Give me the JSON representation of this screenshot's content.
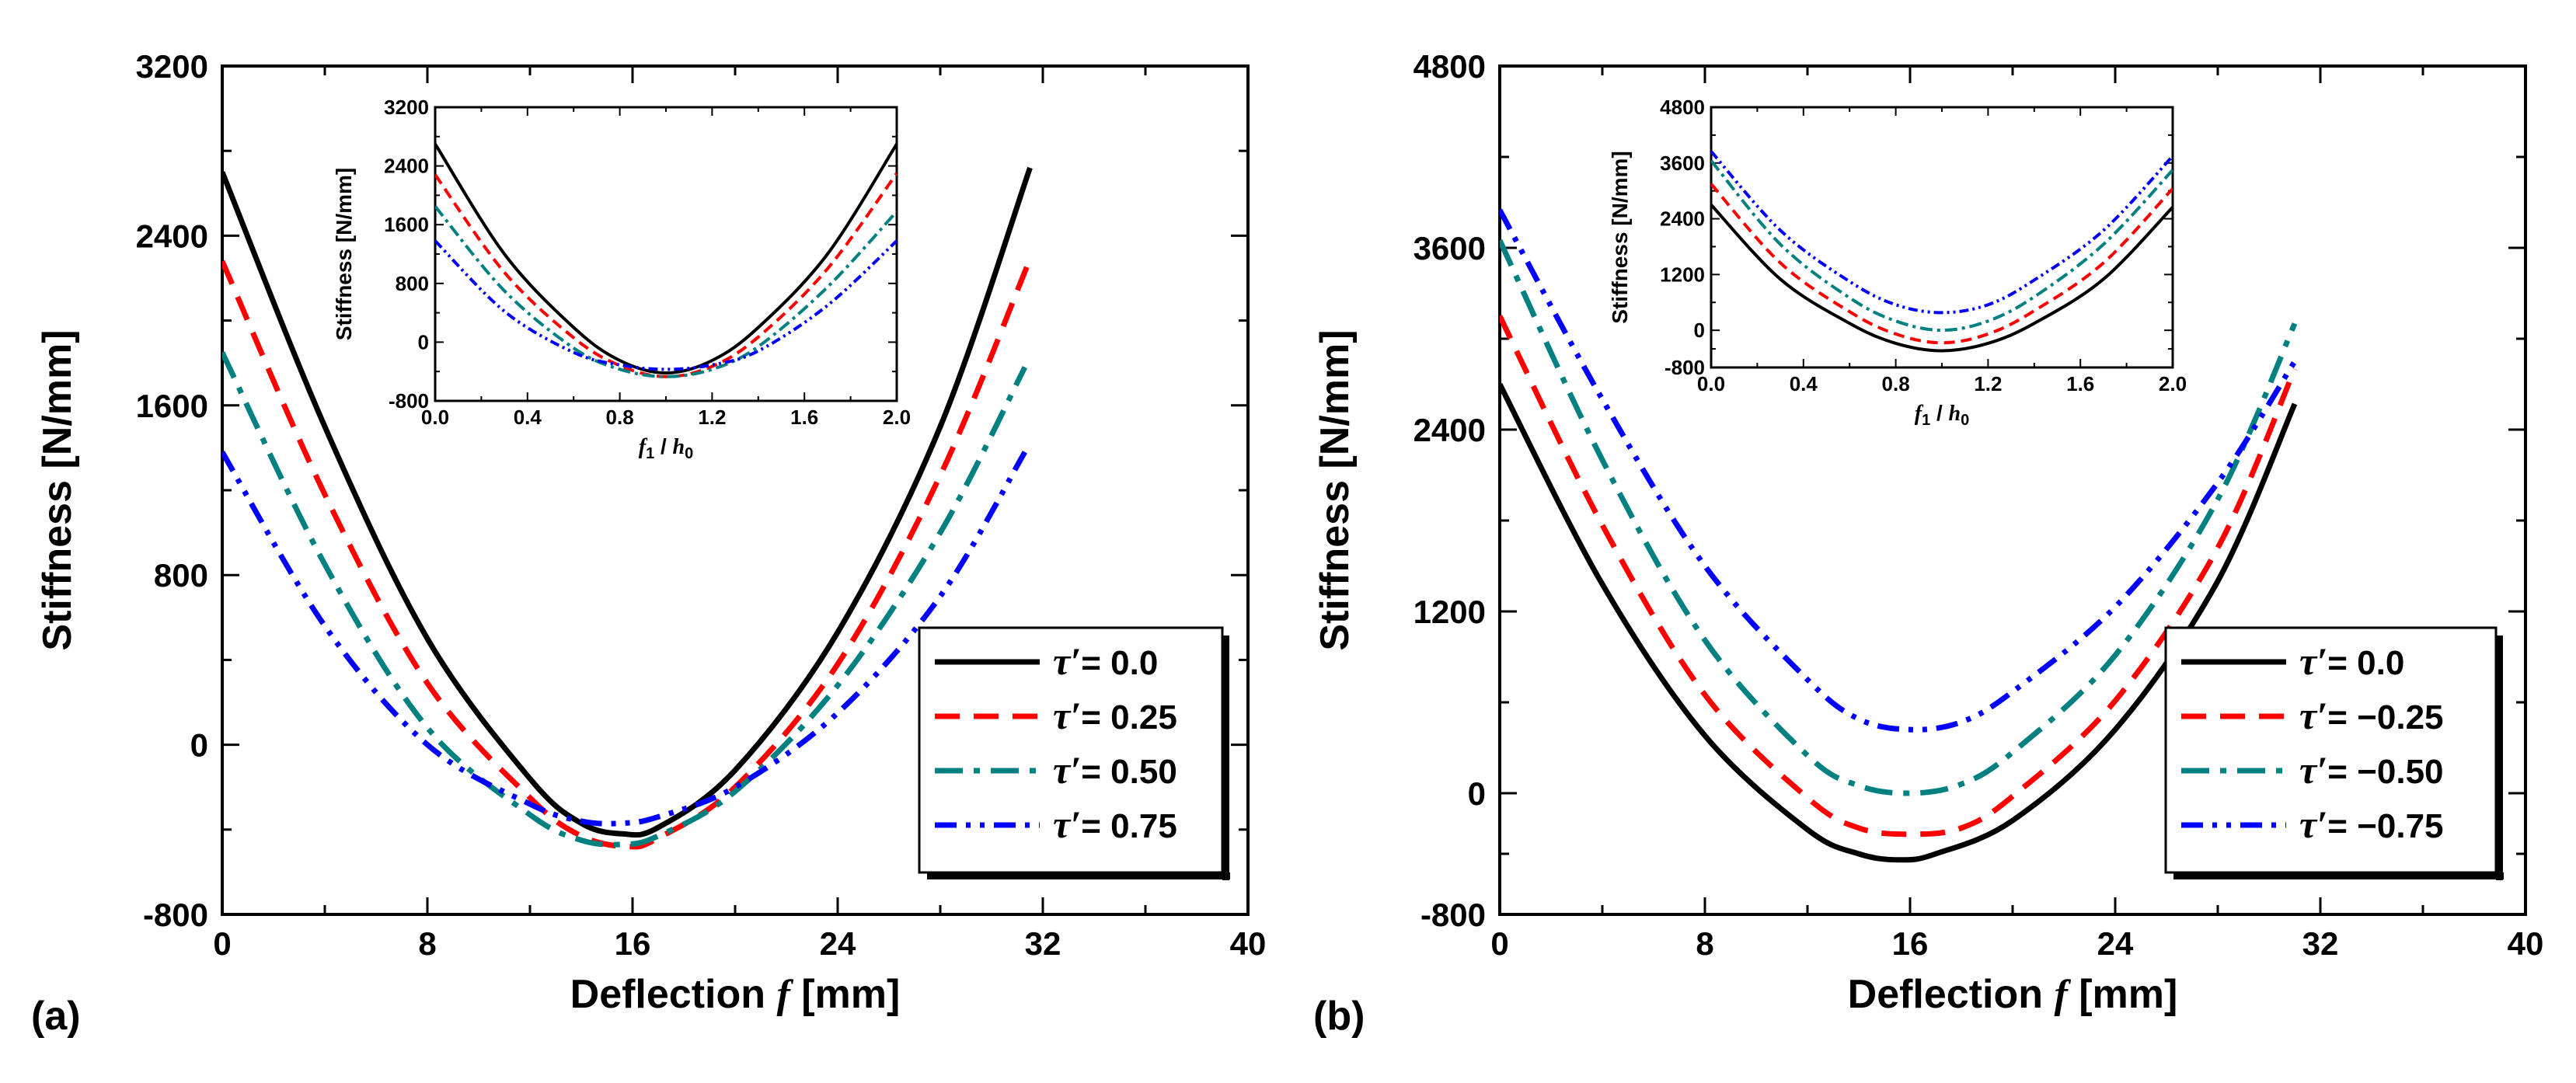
{
  "chart_data": [
    {
      "type": "line",
      "panel": "(a)",
      "xlabel_prefix": "Deflection ",
      "xlabel_var": "f",
      "xlabel_unit": " [mm]",
      "ylabel": "Stiffness [N/mm]",
      "xlim": [
        0,
        40
      ],
      "ylim": [
        -800,
        3200
      ],
      "xticks": [
        0,
        8,
        16,
        24,
        32,
        40
      ],
      "yticks": [
        -800,
        0,
        800,
        1600,
        2400,
        3200
      ],
      "xtick_labels": [
        "0",
        "8",
        "16",
        "24",
        "32",
        "40"
      ],
      "ytick_labels": [
        "-800",
        "0",
        "800",
        "1600",
        "2400",
        "3200"
      ],
      "legend_position": "bottom-right",
      "series": [
        {
          "name": "τ′= 0.0",
          "legend_label": "= 0.0",
          "color": "#000000",
          "dash": "solid",
          "x": [
            0,
            4,
            8,
            12,
            14,
            15.6,
            17,
            20,
            24,
            28,
            31.5
          ],
          "y": [
            2700,
            1500,
            500,
            -160,
            -370,
            -420,
            -390,
            -120,
            530,
            1500,
            2720
          ]
        },
        {
          "name": "τ′= 0.25",
          "legend_label": "= 0.25",
          "color": "#ff0000",
          "dash": "dash",
          "x": [
            0,
            4,
            8,
            12,
            14,
            15.8,
            17,
            20,
            24,
            28,
            31.5
          ],
          "y": [
            2280,
            1180,
            290,
            -250,
            -430,
            -480,
            -440,
            -200,
            380,
            1270,
            2290
          ]
        },
        {
          "name": "τ′= 0.50",
          "legend_label": "= 0.50",
          "color": "#008080",
          "dash": "dashdot",
          "x": [
            0,
            4,
            8,
            12,
            14,
            15.6,
            17,
            20,
            24,
            28,
            31.3
          ],
          "y": [
            1850,
            850,
            80,
            -330,
            -450,
            -470,
            -430,
            -220,
            280,
            1000,
            1780
          ]
        },
        {
          "name": "τ′= 0.75",
          "legend_label": "= 0.75",
          "color": "#0000ff",
          "dash": "dashdotdot",
          "x": [
            0,
            4,
            8,
            12,
            14,
            15.6,
            17,
            20,
            24,
            28,
            31.3
          ],
          "y": [
            1380,
            560,
            0,
            -280,
            -360,
            -370,
            -340,
            -200,
            150,
            700,
            1380
          ]
        }
      ],
      "inset": {
        "xlabel_num": "f",
        "xlabel_num_sub": "1",
        "xlabel_sep": " / ",
        "xlabel_den": "h",
        "xlabel_den_sub": "0",
        "ylabel": "Stiffness [N/mm]",
        "xlim": [
          0,
          2.0
        ],
        "ylim": [
          -800,
          3200
        ],
        "xticks": [
          0,
          0.4,
          0.8,
          1.2,
          1.6,
          2.0
        ],
        "yticks": [
          -800,
          0,
          800,
          1600,
          2400,
          3200
        ],
        "xtick_labels": [
          "0.0",
          "0.4",
          "0.8",
          "1.2",
          "1.6",
          "2.0"
        ],
        "ytick_labels": [
          "-800",
          "0",
          "800",
          "1600",
          "2400",
          "3200"
        ],
        "series": [
          {
            "name": "τ′= 0.0",
            "color": "#000000",
            "dash": "solid",
            "x": [
              0,
              0.3,
              0.6,
              0.8,
              1.0,
              1.2,
              1.4,
              1.7,
              2.0
            ],
            "y": [
              2700,
              1200,
              200,
              -250,
              -420,
              -250,
              200,
              1200,
              2700
            ]
          },
          {
            "name": "τ′= 0.25",
            "color": "#ff0000",
            "dash": "dash",
            "x": [
              0,
              0.3,
              0.6,
              0.8,
              1.0,
              1.2,
              1.4,
              1.7,
              2.0
            ],
            "y": [
              2280,
              950,
              60,
              -320,
              -470,
              -330,
              70,
              1000,
              2300
            ]
          },
          {
            "name": "τ′= 0.50",
            "color": "#008080",
            "dash": "dashdot",
            "x": [
              0,
              0.3,
              0.6,
              0.8,
              1.0,
              1.2,
              1.4,
              1.7,
              2.0
            ],
            "y": [
              1850,
              700,
              -80,
              -370,
              -470,
              -370,
              -60,
              750,
              1780
            ]
          },
          {
            "name": "τ′= 0.75",
            "color": "#0000ff",
            "dash": "dashdotdot",
            "x": [
              0,
              0.3,
              0.6,
              0.8,
              1.0,
              1.2,
              1.4,
              1.7,
              2.0
            ],
            "y": [
              1380,
              420,
              -140,
              -310,
              -370,
              -310,
              -120,
              500,
              1380
            ]
          }
        ]
      }
    },
    {
      "type": "line",
      "panel": "(b)",
      "xlabel_prefix": "Deflection ",
      "xlabel_var": "f",
      "xlabel_unit": " [mm]",
      "ylabel": "Stiffness [N/mm]",
      "xlim": [
        0,
        40
      ],
      "ylim": [
        -800,
        4800
      ],
      "xticks": [
        0,
        8,
        16,
        24,
        32,
        40
      ],
      "yticks": [
        -800,
        0,
        1200,
        2400,
        3600,
        4800
      ],
      "xtick_labels": [
        "0",
        "8",
        "16",
        "24",
        "32",
        "40"
      ],
      "ytick_labels": [
        "-800",
        "0",
        "1200",
        "2400",
        "3600",
        "4800"
      ],
      "legend_position": "bottom-right",
      "series": [
        {
          "name": "τ′= 0.0",
          "legend_label": "= 0.0",
          "color": "#000000",
          "dash": "solid",
          "x": [
            0,
            4,
            8,
            12,
            14,
            15.6,
            17,
            20,
            24,
            28,
            31
          ],
          "y": [
            2700,
            1380,
            380,
            -240,
            -400,
            -440,
            -400,
            -180,
            420,
            1400,
            2570
          ]
        },
        {
          "name": "τ′= −0.25",
          "legend_label": "= −0.25",
          "color": "#ff0000",
          "dash": "dash",
          "x": [
            0,
            4,
            8,
            12,
            14,
            16,
            18,
            20,
            24,
            28,
            31
          ],
          "y": [
            3150,
            1770,
            650,
            -30,
            -230,
            -270,
            -230,
            -20,
            610,
            1620,
            2800
          ]
        },
        {
          "name": "τ′= −0.50",
          "legend_label": "= −0.50",
          "color": "#008080",
          "dash": "dashdot",
          "x": [
            0,
            4,
            8,
            12,
            14,
            16,
            18,
            20,
            24,
            28,
            31
          ],
          "y": [
            3650,
            2200,
            1010,
            250,
            50,
            0,
            60,
            270,
            910,
            1940,
            3100
          ]
        },
        {
          "name": "τ′= −0.75",
          "legend_label": "= −0.75",
          "color": "#0000ff",
          "dash": "dashdotdot",
          "x": [
            0,
            4,
            8,
            12,
            14,
            16,
            18,
            20,
            24,
            28,
            31
          ],
          "y": [
            3850,
            2600,
            1500,
            750,
            490,
            420,
            470,
            670,
            1230,
            2050,
            2850
          ]
        }
      ],
      "inset": {
        "xlabel_num": "f",
        "xlabel_num_sub": "1",
        "xlabel_sep": " / ",
        "xlabel_den": "h",
        "xlabel_den_sub": "0",
        "ylabel": "Stiffness [N/mm]",
        "xlim": [
          0,
          2.0
        ],
        "ylim": [
          -800,
          4800
        ],
        "xticks": [
          0,
          0.4,
          0.8,
          1.2,
          1.6,
          2.0
        ],
        "yticks": [
          -800,
          0,
          1200,
          2400,
          3600,
          4800
        ],
        "xtick_labels": [
          "0.0",
          "0.4",
          "0.8",
          "1.2",
          "1.6",
          "2.0"
        ],
        "ytick_labels": [
          "-800",
          "0",
          "1200",
          "2400",
          "3600",
          "4800"
        ],
        "series": [
          {
            "name": "τ′= 0.0",
            "color": "#000000",
            "dash": "solid",
            "x": [
              0,
              0.3,
              0.6,
              0.8,
              1.0,
              1.2,
              1.4,
              1.7,
              2.0
            ],
            "y": [
              2700,
              1100,
              150,
              -280,
              -440,
              -280,
              150,
              1100,
              2650
            ]
          },
          {
            "name": "τ′= −0.25",
            "color": "#ff0000",
            "dash": "dash",
            "x": [
              0,
              0.3,
              0.6,
              0.8,
              1.0,
              1.2,
              1.4,
              1.7,
              2.0
            ],
            "y": [
              3150,
              1450,
              400,
              -80,
              -270,
              -80,
              420,
              1450,
              3050
            ]
          },
          {
            "name": "τ′= −0.50",
            "color": "#008080",
            "dash": "dashdot",
            "x": [
              0,
              0.3,
              0.6,
              0.8,
              1.0,
              1.2,
              1.4,
              1.7,
              2.0
            ],
            "y": [
              3650,
              1850,
              700,
              200,
              0,
              200,
              720,
              1850,
              3450
            ]
          },
          {
            "name": "τ′= −0.75",
            "color": "#0000ff",
            "dash": "dashdotdot",
            "x": [
              0,
              0.3,
              0.6,
              0.8,
              1.0,
              1.2,
              1.4,
              1.7,
              2.0
            ],
            "y": [
              3850,
              2150,
              1050,
              550,
              380,
              550,
              1080,
              2150,
              3750
            ]
          }
        ]
      }
    }
  ]
}
